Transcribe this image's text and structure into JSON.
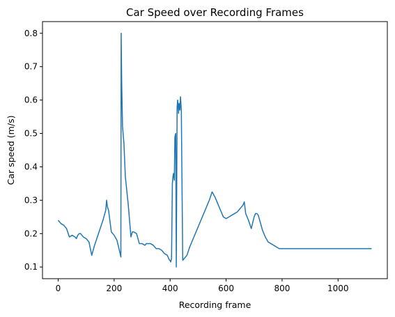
{
  "chart_data": {
    "type": "line",
    "title": "Car Speed over Recording Frames",
    "xlabel": "Recording frame",
    "ylabel": "Car speed (m/s)",
    "xlim": [
      -56,
      1176
    ],
    "ylim": [
      0.065,
      0.835
    ],
    "xticks": [
      0,
      200,
      400,
      600,
      800,
      1000
    ],
    "yticks": [
      0.1,
      0.2,
      0.3,
      0.4,
      0.5,
      0.6,
      0.7,
      0.8
    ],
    "xtick_labels": [
      "0",
      "200",
      "400",
      "600",
      "800",
      "1000"
    ],
    "ytick_labels": [
      "0.1",
      "0.2",
      "0.3",
      "0.4",
      "0.5",
      "0.6",
      "0.7",
      "0.8"
    ],
    "grid": false,
    "color": "#1f77b4",
    "series": [
      {
        "x": [
          0,
          5,
          10,
          20,
          30,
          40,
          50,
          60,
          65,
          70,
          75,
          80,
          90,
          100,
          110,
          120,
          130,
          140,
          150,
          160,
          170,
          173,
          176,
          180,
          190,
          200,
          210,
          220,
          224,
          225,
          227,
          230,
          235,
          240,
          250,
          260,
          265,
          270,
          280,
          290,
          300,
          310,
          315,
          320,
          330,
          340,
          350,
          360,
          370,
          380,
          390,
          395,
          398,
          400,
          402,
          405,
          408,
          410,
          412,
          415,
          417,
          420,
          422,
          425,
          427,
          430,
          432,
          435,
          437,
          440,
          445,
          450,
          460,
          470,
          480,
          490,
          500,
          510,
          520,
          530,
          540,
          550,
          560,
          570,
          580,
          590,
          600,
          610,
          620,
          630,
          640,
          650,
          660,
          665,
          670,
          680,
          690,
          700,
          705,
          710,
          715,
          720,
          730,
          740,
          750,
          760,
          770,
          780,
          790,
          795,
          800,
          900,
          1000,
          1100,
          1120
        ],
        "y": [
          0.24,
          0.235,
          0.23,
          0.225,
          0.215,
          0.19,
          0.195,
          0.19,
          0.185,
          0.195,
          0.2,
          0.2,
          0.19,
          0.185,
          0.175,
          0.135,
          0.165,
          0.19,
          0.215,
          0.24,
          0.27,
          0.3,
          0.28,
          0.27,
          0.205,
          0.195,
          0.18,
          0.145,
          0.13,
          0.8,
          0.65,
          0.52,
          0.47,
          0.37,
          0.29,
          0.19,
          0.205,
          0.205,
          0.2,
          0.17,
          0.17,
          0.165,
          0.17,
          0.17,
          0.17,
          0.165,
          0.155,
          0.155,
          0.15,
          0.14,
          0.135,
          0.125,
          0.12,
          0.12,
          0.115,
          0.125,
          0.35,
          0.37,
          0.38,
          0.36,
          0.49,
          0.5,
          0.1,
          0.58,
          0.6,
          0.56,
          0.59,
          0.57,
          0.61,
          0.57,
          0.12,
          0.125,
          0.135,
          0.16,
          0.18,
          0.2,
          0.22,
          0.24,
          0.26,
          0.28,
          0.3,
          0.325,
          0.31,
          0.29,
          0.27,
          0.25,
          0.245,
          0.25,
          0.255,
          0.26,
          0.265,
          0.275,
          0.285,
          0.295,
          0.26,
          0.24,
          0.215,
          0.25,
          0.26,
          0.26,
          0.255,
          0.24,
          0.21,
          0.19,
          0.175,
          0.17,
          0.165,
          0.16,
          0.155,
          0.155,
          0.155,
          0.155,
          0.155,
          0.155,
          0.155
        ]
      }
    ]
  }
}
